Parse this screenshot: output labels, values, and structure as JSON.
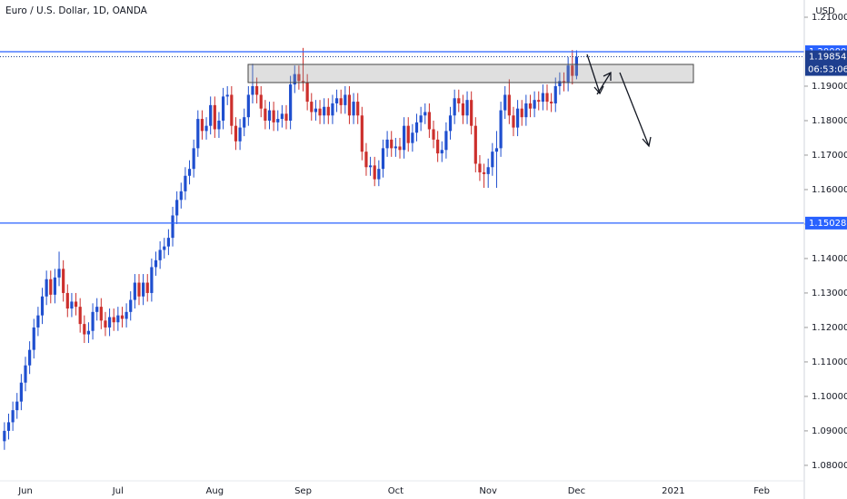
{
  "chart_data": {
    "type": "candlestick",
    "title": "Euro / U.S. Dollar, 1D, OANDA",
    "y_unit": "USD",
    "up_color": "#1f4fcf",
    "down_color": "#cc2f2c",
    "ylim": [
      1.0755,
      1.215
    ],
    "yticks": [
      {
        "value": 1.08,
        "label": "1.08000"
      },
      {
        "value": 1.09,
        "label": "1.09000"
      },
      {
        "value": 1.1,
        "label": "1.10000"
      },
      {
        "value": 1.11,
        "label": "1.11000"
      },
      {
        "value": 1.12,
        "label": "1.12000"
      },
      {
        "value": 1.13,
        "label": "1.13000"
      },
      {
        "value": 1.14,
        "label": "1.14000"
      },
      {
        "value": 1.15,
        "label": "1.15000"
      },
      {
        "value": 1.16,
        "label": "1.16000"
      },
      {
        "value": 1.17,
        "label": "1.17000"
      },
      {
        "value": 1.18,
        "label": "1.18000"
      },
      {
        "value": 1.19,
        "label": "1.19000"
      },
      {
        "value": 1.21,
        "label": "1.21000"
      }
    ],
    "grid": false,
    "hlines": [
      {
        "value": 1.2,
        "label": "1.20000",
        "color": "#2962ff"
      },
      {
        "value": 1.15028,
        "label": "1.15028",
        "color": "#2962ff"
      }
    ],
    "last_price": {
      "value": 1.19854,
      "label": "1.19854",
      "color": "#1e3f8f"
    },
    "countdown": "06:53:06",
    "categories": [
      null,
      null,
      null,
      null,
      null,
      "Jun",
      null,
      null,
      null,
      null,
      null,
      null,
      null,
      null,
      null,
      null,
      null,
      null,
      null,
      null,
      null,
      null,
      null,
      null,
      null,
      null,
      null,
      "Jul",
      null,
      null,
      null,
      null,
      null,
      null,
      null,
      null,
      null,
      null,
      null,
      null,
      null,
      null,
      null,
      null,
      null,
      null,
      null,
      null,
      null,
      null,
      "Aug",
      null,
      null,
      null,
      null,
      null,
      null,
      null,
      null,
      null,
      null,
      null,
      null,
      null,
      null,
      null,
      null,
      null,
      null,
      null,
      null,
      "Sep",
      null,
      null,
      null,
      null,
      null,
      null,
      null,
      null,
      null,
      null,
      null,
      null,
      null,
      null,
      null,
      null,
      null,
      null,
      null,
      null,
      null,
      "Oct",
      null,
      null,
      null,
      null,
      null,
      null,
      null,
      null,
      null,
      null,
      null,
      null,
      null,
      null,
      null,
      null,
      null,
      null,
      null,
      null,
      null,
      "Nov",
      null,
      null,
      null,
      null,
      null,
      null,
      null,
      null,
      null,
      null,
      null,
      null,
      null,
      null,
      null,
      null,
      null,
      null,
      null,
      null,
      "Dec",
      null,
      null,
      null,
      null,
      null,
      null,
      null,
      null,
      null,
      null,
      null,
      null,
      null,
      null,
      null,
      null,
      null,
      null,
      null,
      null,
      null,
      null,
      "2021",
      null,
      null,
      null,
      null,
      null,
      null,
      null,
      null,
      null,
      null,
      null,
      null,
      null,
      null,
      null,
      null,
      null,
      null,
      null,
      null,
      "Feb"
    ],
    "open": [
      1.087,
      1.09,
      1.0925,
      1.096,
      1.0985,
      1.104,
      1.109,
      1.1135,
      1.12,
      1.1235,
      1.129,
      1.134,
      1.1295,
      1.1345,
      1.137,
      1.13,
      1.1255,
      1.1275,
      1.126,
      1.121,
      1.118,
      1.119,
      1.1245,
      1.126,
      1.122,
      1.12,
      1.123,
      1.1215,
      1.1235,
      1.1225,
      1.1245,
      1.128,
      1.133,
      1.129,
      1.133,
      1.13,
      1.1375,
      1.1395,
      1.1425,
      1.1435,
      1.146,
      1.1525,
      1.157,
      1.1595,
      1.164,
      1.166,
      1.172,
      1.1805,
      1.177,
      1.1785,
      1.1845,
      1.1775,
      1.18,
      1.187,
      1.1875,
      1.1785,
      1.174,
      1.178,
      1.181,
      1.1875,
      1.19,
      1.1875,
      1.1835,
      1.18,
      1.183,
      1.1795,
      1.1805,
      1.182,
      1.18,
      1.1905,
      1.1935,
      1.1915,
      1.191,
      1.1855,
      1.1825,
      1.1835,
      1.1815,
      1.184,
      1.1815,
      1.185,
      1.1865,
      1.1845,
      1.1875,
      1.1815,
      1.1855,
      1.1815,
      1.171,
      1.1665,
      1.167,
      1.163,
      1.166,
      1.172,
      1.1745,
      1.172,
      1.1725,
      1.1715,
      1.1785,
      1.1735,
      1.1765,
      1.1795,
      1.1815,
      1.1825,
      1.1775,
      1.1745,
      1.1705,
      1.1715,
      1.177,
      1.1815,
      1.1865,
      1.185,
      1.1815,
      1.186,
      1.1785,
      1.1675,
      1.165,
      1.1645,
      1.1665,
      1.171,
      1.172,
      1.183,
      1.1875,
      1.1815,
      1.178,
      1.1835,
      1.181,
      1.185,
      1.1835,
      1.186,
      1.1855,
      1.188,
      1.1855,
      1.185,
      1.19,
      1.1915,
      1.191,
      1.196,
      1.193,
      null,
      null,
      null,
      null,
      null,
      null,
      null,
      null,
      null,
      null,
      null,
      null,
      null,
      null,
      null,
      null,
      null,
      null,
      null,
      null,
      null,
      null,
      null,
      null,
      null,
      null,
      null,
      null,
      null,
      null,
      null,
      null,
      null,
      null,
      null,
      null,
      null,
      null,
      null,
      null,
      null,
      null,
      null,
      null
    ],
    "high": [
      1.0925,
      1.095,
      1.0985,
      1.101,
      1.1065,
      1.1115,
      1.116,
      1.1225,
      1.126,
      1.1315,
      1.1365,
      1.1365,
      1.137,
      1.142,
      1.1395,
      1.1325,
      1.13,
      1.13,
      1.1285,
      1.1235,
      1.1215,
      1.127,
      1.1285,
      1.1285,
      1.1245,
      1.1255,
      1.1255,
      1.126,
      1.126,
      1.127,
      1.1305,
      1.1355,
      1.1355,
      1.1355,
      1.1355,
      1.14,
      1.142,
      1.145,
      1.146,
      1.1485,
      1.155,
      1.1595,
      1.162,
      1.1665,
      1.1685,
      1.1745,
      1.183,
      1.183,
      1.181,
      1.187,
      1.187,
      1.1825,
      1.1895,
      1.19,
      1.19,
      1.181,
      1.1805,
      1.1835,
      1.19,
      1.1965,
      1.1925,
      1.19,
      1.186,
      1.1855,
      1.1855,
      1.183,
      1.1845,
      1.1845,
      1.193,
      1.196,
      1.196,
      1.2011,
      1.1935,
      1.188,
      1.186,
      1.186,
      1.1865,
      1.1865,
      1.1875,
      1.189,
      1.189,
      1.19,
      1.19,
      1.188,
      1.188,
      1.184,
      1.1735,
      1.1695,
      1.1695,
      1.1685,
      1.1745,
      1.177,
      1.177,
      1.175,
      1.175,
      1.181,
      1.181,
      1.179,
      1.182,
      1.184,
      1.185,
      1.185,
      1.18,
      1.177,
      1.174,
      1.1795,
      1.184,
      1.189,
      1.189,
      1.1875,
      1.1885,
      1.1885,
      1.181,
      1.17,
      1.1675,
      1.169,
      1.1735,
      1.177,
      1.1855,
      1.19,
      1.192,
      1.184,
      1.186,
      1.186,
      1.1875,
      1.1875,
      1.1885,
      1.1885,
      1.1905,
      1.1905,
      1.188,
      1.1925,
      1.194,
      1.194,
      1.1985,
      1.2005,
      1.2004,
      null,
      null,
      null,
      null,
      null,
      null,
      null,
      null,
      null,
      null,
      null,
      null,
      null,
      null,
      null,
      null,
      null,
      null,
      null,
      null,
      null,
      null,
      null,
      null,
      null,
      null,
      null,
      null,
      null,
      null,
      null,
      null,
      null,
      null,
      null,
      null,
      null,
      null,
      null,
      null,
      null,
      null,
      null,
      null
    ],
    "low": [
      1.0845,
      1.0875,
      1.09,
      1.0935,
      1.096,
      1.1015,
      1.1065,
      1.111,
      1.1175,
      1.121,
      1.1265,
      1.127,
      1.127,
      1.132,
      1.1275,
      1.123,
      1.123,
      1.1235,
      1.1185,
      1.1155,
      1.1155,
      1.1165,
      1.122,
      1.1195,
      1.1175,
      1.1175,
      1.119,
      1.119,
      1.12,
      1.12,
      1.122,
      1.1255,
      1.1265,
      1.1265,
      1.1275,
      1.1275,
      1.135,
      1.137,
      1.14,
      1.141,
      1.1435,
      1.15,
      1.1545,
      1.157,
      1.1615,
      1.1635,
      1.1695,
      1.1745,
      1.1745,
      1.176,
      1.175,
      1.175,
      1.1775,
      1.1845,
      1.176,
      1.1715,
      1.1715,
      1.1755,
      1.1785,
      1.185,
      1.185,
      1.181,
      1.1775,
      1.1775,
      1.177,
      1.177,
      1.178,
      1.1775,
      1.1775,
      1.188,
      1.189,
      1.1885,
      1.183,
      1.18,
      1.18,
      1.179,
      1.179,
      1.179,
      1.179,
      1.1825,
      1.182,
      1.182,
      1.179,
      1.179,
      1.179,
      1.1685,
      1.164,
      1.164,
      1.161,
      1.161,
      1.1635,
      1.1695,
      1.1695,
      1.1695,
      1.169,
      1.169,
      1.171,
      1.171,
      1.174,
      1.177,
      1.179,
      1.175,
      1.172,
      1.168,
      1.168,
      1.169,
      1.1745,
      1.179,
      1.1825,
      1.179,
      1.179,
      1.176,
      1.165,
      1.1625,
      1.1605,
      1.1605,
      1.164,
      1.1605,
      1.1695,
      1.1805,
      1.179,
      1.1755,
      1.1755,
      1.1785,
      1.1785,
      1.181,
      1.181,
      1.183,
      1.183,
      1.183,
      1.1825,
      1.1825,
      1.1875,
      1.1885,
      1.1885,
      1.1905,
      1.192,
      null,
      null,
      null,
      null,
      null,
      null,
      null,
      null,
      null,
      null,
      null,
      null,
      null,
      null,
      null,
      null,
      null,
      null,
      null,
      null,
      null,
      null,
      null,
      null,
      null,
      null,
      null,
      null,
      null,
      null,
      null,
      null,
      null,
      null,
      null,
      null,
      null,
      null,
      null,
      null,
      null,
      null,
      null,
      null
    ],
    "close": [
      1.09,
      1.0925,
      1.096,
      1.0985,
      1.104,
      1.109,
      1.1135,
      1.12,
      1.1235,
      1.129,
      1.134,
      1.1295,
      1.1345,
      1.137,
      1.13,
      1.1255,
      1.1275,
      1.126,
      1.121,
      1.118,
      1.119,
      1.1245,
      1.126,
      1.122,
      1.12,
      1.123,
      1.1215,
      1.1235,
      1.1225,
      1.1245,
      1.128,
      1.133,
      1.129,
      1.133,
      1.13,
      1.1375,
      1.1395,
      1.1425,
      1.1435,
      1.146,
      1.1525,
      1.157,
      1.1595,
      1.164,
      1.166,
      1.172,
      1.1805,
      1.177,
      1.1785,
      1.1845,
      1.1775,
      1.18,
      1.187,
      1.1875,
      1.1785,
      1.174,
      1.178,
      1.181,
      1.1875,
      1.19,
      1.1875,
      1.1835,
      1.18,
      1.183,
      1.1795,
      1.1805,
      1.182,
      1.18,
      1.1905,
      1.1935,
      1.1915,
      1.191,
      1.1855,
      1.1825,
      1.1835,
      1.1815,
      1.184,
      1.1815,
      1.185,
      1.1865,
      1.1845,
      1.1875,
      1.1815,
      1.1855,
      1.1815,
      1.171,
      1.1665,
      1.167,
      1.163,
      1.166,
      1.172,
      1.1745,
      1.172,
      1.1725,
      1.1715,
      1.1785,
      1.1735,
      1.1765,
      1.1795,
      1.1815,
      1.1825,
      1.1775,
      1.1745,
      1.1705,
      1.1715,
      1.177,
      1.1815,
      1.1865,
      1.185,
      1.1815,
      1.186,
      1.1785,
      1.1675,
      1.165,
      1.1645,
      1.1665,
      1.171,
      1.172,
      1.183,
      1.1875,
      1.1815,
      1.178,
      1.1835,
      1.181,
      1.185,
      1.1835,
      1.186,
      1.1855,
      1.188,
      1.1855,
      1.185,
      1.19,
      1.1915,
      1.191,
      1.196,
      1.193,
      1.1985,
      null,
      null,
      null,
      null,
      null,
      null,
      null,
      null,
      null,
      null,
      null,
      null,
      null,
      null,
      null,
      null,
      null,
      null,
      null,
      null,
      null,
      null,
      null,
      null,
      null,
      null,
      null,
      null,
      null,
      null,
      null,
      null,
      null,
      null,
      null,
      null,
      null,
      null,
      null,
      null,
      null,
      null,
      null,
      null
    ]
  }
}
